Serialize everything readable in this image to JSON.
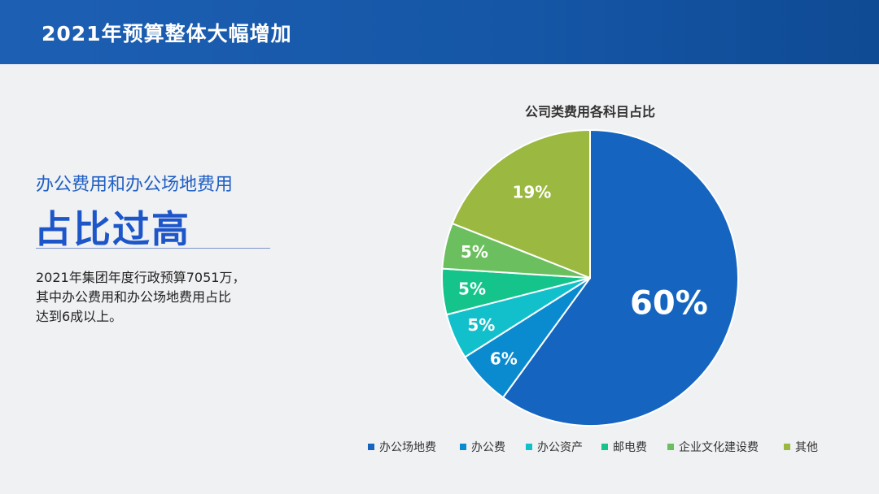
{
  "header": {
    "title": "2021年预算整体大幅增加"
  },
  "left": {
    "subtitle": "办公费用和办公场地费用",
    "headline": "占比过高",
    "desc_lines": [
      "2021年集团年度行政预算7051万，",
      "其中办公费用和办公场地费用占比",
      "达到6成以上。"
    ]
  },
  "chart_data": {
    "type": "pie",
    "title": "公司类费用各科目占比",
    "categories": [
      "办公场地费",
      "办公费",
      "办公资产",
      "邮电费",
      "企业文化建设费",
      "其他"
    ],
    "values": [
      60,
      6,
      5,
      5,
      5,
      19
    ],
    "labels": [
      "60%",
      "6%",
      "5%",
      "5%",
      "5%",
      "19%"
    ],
    "colors": [
      "#1565c0",
      "#0a8bd0",
      "#12c0cc",
      "#14c48b",
      "#6cbf5f",
      "#9bb841"
    ],
    "legend": "bottom",
    "start_angle": "12 o'clock",
    "direction": "clockwise"
  }
}
